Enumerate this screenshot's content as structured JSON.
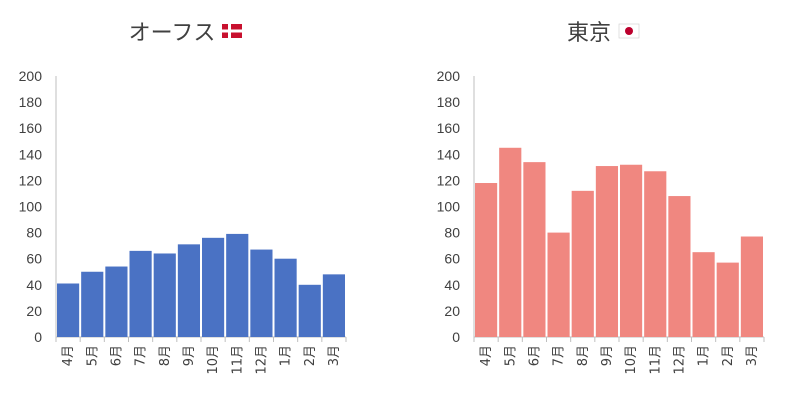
{
  "chart_data": [
    {
      "type": "bar",
      "title": "オーフス",
      "flag": "denmark-flag-icon",
      "categories": [
        "4月",
        "5月",
        "6月",
        "7月",
        "8月",
        "9月",
        "10月",
        "11月",
        "12月",
        "1月",
        "2月",
        "3月"
      ],
      "values": [
        41,
        50,
        54,
        66,
        64,
        71,
        76,
        79,
        67,
        60,
        40,
        48
      ],
      "ylim": [
        0,
        200
      ],
      "yticks": [
        0,
        20,
        40,
        60,
        80,
        100,
        120,
        140,
        160,
        180,
        200
      ],
      "grid": false,
      "color": "#4a72c4"
    },
    {
      "type": "bar",
      "title": "東京",
      "flag": "japan-flag-icon",
      "categories": [
        "4月",
        "5月",
        "6月",
        "7月",
        "8月",
        "9月",
        "10月",
        "11月",
        "12月",
        "1月",
        "2月",
        "3月"
      ],
      "values": [
        118,
        145,
        134,
        80,
        112,
        131,
        132,
        127,
        108,
        65,
        57,
        77
      ],
      "ylim": [
        0,
        200
      ],
      "yticks": [
        0,
        20,
        40,
        60,
        80,
        100,
        120,
        140,
        160,
        180,
        200
      ],
      "grid": false,
      "color": "#f08780"
    }
  ]
}
